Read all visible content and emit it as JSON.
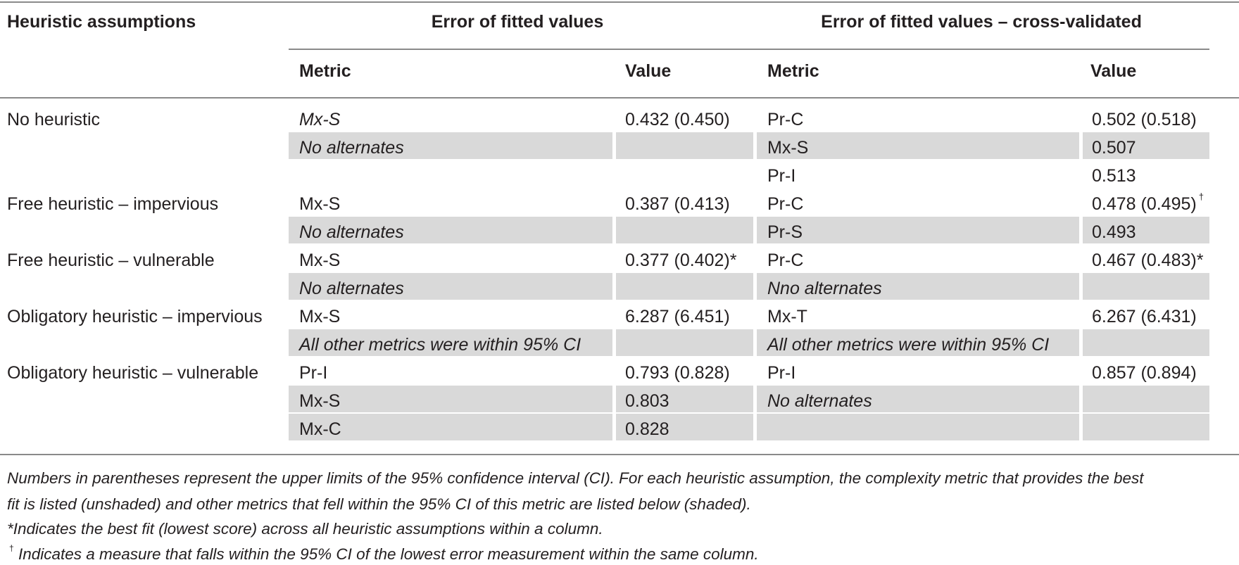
{
  "table": {
    "headers": {
      "assumptions": "Heuristic assumptions",
      "group_fitted": "Error of fitted values",
      "group_cv": "Error of fitted values – cross-validated",
      "metric": "Metric",
      "value": "Value"
    },
    "rows": [
      {
        "assumption": "No heuristic",
        "fitted": [
          {
            "metric": "Mx-S",
            "value": "0.432 (0.450)",
            "shaded": false,
            "metric_italic": true
          },
          {
            "metric": "No alternates",
            "value": "",
            "shaded": true,
            "metric_italic": true
          }
        ],
        "cv": [
          {
            "metric": "Pr-C",
            "value": "0.502 (0.518)",
            "shaded": false
          },
          {
            "metric": "Mx-S",
            "value": "0.507",
            "shaded": true
          },
          {
            "metric": "Pr-I",
            "value": "0.513",
            "shaded": false
          }
        ]
      },
      {
        "assumption": "Free heuristic – impervious",
        "fitted": [
          {
            "metric": "Mx-S",
            "value": "0.387 (0.413)",
            "shaded": false
          },
          {
            "metric": "No alternates",
            "value": "",
            "shaded": true,
            "metric_italic": true
          }
        ],
        "cv": [
          {
            "metric": "Pr-C",
            "value": "0.478 (0.495)",
            "mark": "†",
            "shaded": false
          },
          {
            "metric": "Pr-S",
            "value": "0.493",
            "shaded": true
          }
        ]
      },
      {
        "assumption": "Free heuristic – vulnerable",
        "fitted": [
          {
            "metric": "Mx-S",
            "value": "0.377 (0.402)*",
            "shaded": false
          },
          {
            "metric": "No alternates",
            "value": "",
            "shaded": true,
            "metric_italic": true
          }
        ],
        "cv": [
          {
            "metric": "Pr-C",
            "value": "0.467 (0.483)*",
            "shaded": false
          },
          {
            "metric": "Nno alternates",
            "value": "",
            "shaded": true,
            "metric_italic": true
          }
        ]
      },
      {
        "assumption": "Obligatory heuristic – impervious",
        "fitted": [
          {
            "metric": "Mx-S",
            "value": "6.287 (6.451)",
            "shaded": false
          },
          {
            "metric": "All other metrics were within 95% CI",
            "value": "",
            "shaded": true,
            "metric_italic": true
          }
        ],
        "cv": [
          {
            "metric": "Mx-T",
            "value": "6.267 (6.431)",
            "shaded": false
          },
          {
            "metric": "All other metrics were within 95% CI",
            "value": "",
            "shaded": true,
            "metric_italic": true
          }
        ]
      },
      {
        "assumption": "Obligatory heuristic – vulnerable",
        "fitted": [
          {
            "metric": "Pr-I",
            "value": "0.793 (0.828)",
            "shaded": false
          },
          {
            "metric": "Mx-S",
            "value": "0.803",
            "shaded": true
          },
          {
            "metric": "Mx-C",
            "value": "0.828",
            "shaded": true
          }
        ],
        "cv": [
          {
            "metric": "Pr-I",
            "value": "0.857 (0.894)",
            "shaded": false
          },
          {
            "metric": "No alternates",
            "value": "",
            "shaded": true,
            "metric_italic": true
          }
        ]
      }
    ]
  },
  "footnotes": {
    "line1": "Numbers in parentheses represent the upper limits of the 95% confidence interval (CI). For each heuristic assumption, the complexity metric that provides the best",
    "line2": "fit is listed (unshaded) and other metrics that fell within the 95% CI of this metric are listed below (shaded).",
    "line3": "*Indicates the best fit (lowest score) across all heuristic assumptions within a column.",
    "line4_mark": "†",
    "line4": " Indicates a measure that falls within the 95% CI of the lowest error measurement within the same column."
  },
  "colors": {
    "rule": "#8a8a8a",
    "shade": "#d9d9d9",
    "text": "#231f20"
  }
}
